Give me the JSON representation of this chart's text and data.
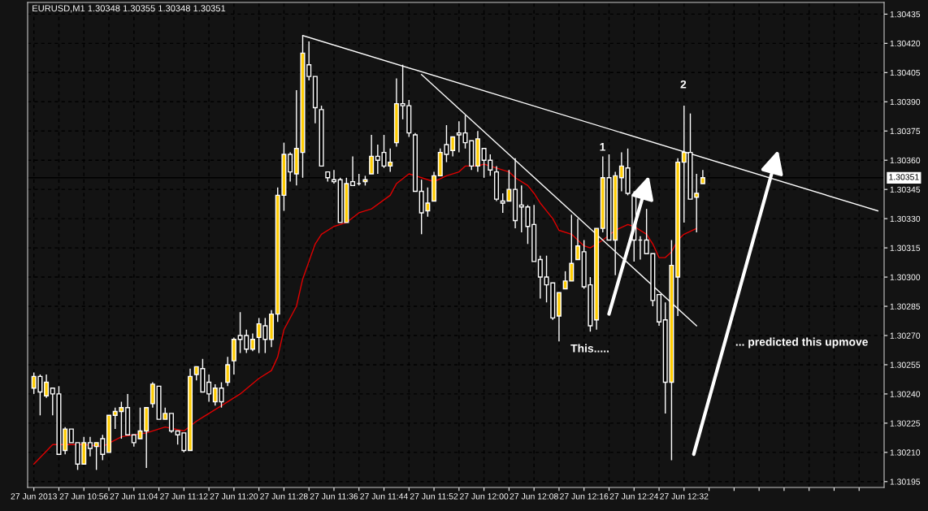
{
  "chart_data": {
    "type": "candlestick",
    "title": "EURUSD,M1 1.30348 1.30355 1.30348 1.30351",
    "x": [
      "2013-06-27T10:48",
      "2013-06-27T10:49",
      "2013-06-27T10:50",
      "2013-06-27T10:51",
      "2013-06-27T10:52",
      "2013-06-27T10:53",
      "2013-06-27T10:54",
      "2013-06-27T10:55",
      "2013-06-27T10:56",
      "2013-06-27T10:57",
      "2013-06-27T10:58",
      "2013-06-27T10:59",
      "2013-06-27T11:00",
      "2013-06-27T11:01",
      "2013-06-27T11:02",
      "2013-06-27T11:03",
      "2013-06-27T11:04",
      "2013-06-27T11:05",
      "2013-06-27T11:06",
      "2013-06-27T11:07",
      "2013-06-27T11:08",
      "2013-06-27T11:09",
      "2013-06-27T11:10",
      "2013-06-27T11:11",
      "2013-06-27T11:12",
      "2013-06-27T11:13",
      "2013-06-27T11:14",
      "2013-06-27T11:15",
      "2013-06-27T11:16",
      "2013-06-27T11:17",
      "2013-06-27T11:18",
      "2013-06-27T11:19",
      "2013-06-27T11:20",
      "2013-06-27T11:21",
      "2013-06-27T11:22",
      "2013-06-27T11:23",
      "2013-06-27T11:24",
      "2013-06-27T11:25",
      "2013-06-27T11:26",
      "2013-06-27T11:27",
      "2013-06-27T11:28",
      "2013-06-27T11:29",
      "2013-06-27T11:30",
      "2013-06-27T11:31",
      "2013-06-27T11:32",
      "2013-06-27T11:33",
      "2013-06-27T11:34",
      "2013-06-27T11:35",
      "2013-06-27T11:36",
      "2013-06-27T11:37",
      "2013-06-27T11:38",
      "2013-06-27T11:39",
      "2013-06-27T11:40",
      "2013-06-27T11:41",
      "2013-06-27T11:42",
      "2013-06-27T11:43",
      "2013-06-27T11:44",
      "2013-06-27T11:45",
      "2013-06-27T11:46",
      "2013-06-27T11:47",
      "2013-06-27T11:48",
      "2013-06-27T11:49",
      "2013-06-27T11:50",
      "2013-06-27T11:51",
      "2013-06-27T11:52",
      "2013-06-27T11:53",
      "2013-06-27T11:54",
      "2013-06-27T11:55",
      "2013-06-27T11:56",
      "2013-06-27T11:57",
      "2013-06-27T11:58",
      "2013-06-27T11:59",
      "2013-06-27T12:00",
      "2013-06-27T12:01",
      "2013-06-27T12:02",
      "2013-06-27T12:03",
      "2013-06-27T12:04",
      "2013-06-27T12:05",
      "2013-06-27T12:06",
      "2013-06-27T12:07",
      "2013-06-27T12:08",
      "2013-06-27T12:09",
      "2013-06-27T12:10",
      "2013-06-27T12:11",
      "2013-06-27T12:12",
      "2013-06-27T12:13",
      "2013-06-27T12:14",
      "2013-06-27T12:15",
      "2013-06-27T12:16",
      "2013-06-27T12:17",
      "2013-06-27T12:18",
      "2013-06-27T12:19",
      "2013-06-27T12:20",
      "2013-06-27T12:21",
      "2013-06-27T12:22",
      "2013-06-27T12:23",
      "2013-06-27T12:24",
      "2013-06-27T12:25",
      "2013-06-27T12:26",
      "2013-06-27T12:27",
      "2013-06-27T12:28",
      "2013-06-27T12:29",
      "2013-06-27T12:30",
      "2013-06-27T12:31",
      "2013-06-27T12:32",
      "2013-06-27T12:33",
      "2013-06-27T12:34",
      "2013-06-27T12:35"
    ],
    "ohlc": [
      [
        1.30243,
        1.30251,
        1.3024,
        1.30249
      ],
      [
        1.30249,
        1.3025,
        1.30229,
        1.30241
      ],
      [
        1.30239,
        1.3025,
        1.30238,
        1.30246
      ],
      [
        1.30243,
        1.30243,
        1.30229,
        1.3024
      ],
      [
        1.3024,
        1.30244,
        1.30209,
        1.30209
      ],
      [
        1.30211,
        1.30223,
        1.30209,
        1.30222
      ],
      [
        1.30222,
        1.30222,
        1.30215,
        1.30215
      ],
      [
        1.30215,
        1.30215,
        1.30201,
        1.30204
      ],
      [
        1.30204,
        1.30218,
        1.30204,
        1.30215
      ],
      [
        1.30215,
        1.30218,
        1.30208,
        1.30212
      ],
      [
        1.30213,
        1.30215,
        1.30201,
        1.30215
      ],
      [
        1.30217,
        1.30219,
        1.30206,
        1.30209
      ],
      [
        1.3021,
        1.30229,
        1.3021,
        1.30229
      ],
      [
        1.30229,
        1.30233,
        1.30222,
        1.30231
      ],
      [
        1.30231,
        1.30236,
        1.30217,
        1.30233
      ],
      [
        1.30233,
        1.3024,
        1.30219,
        1.30219
      ],
      [
        1.30219,
        1.30219,
        1.30213,
        1.30215
      ],
      [
        1.30217,
        1.30233,
        1.30217,
        1.30221
      ],
      [
        1.30221,
        1.30233,
        1.30202,
        1.30233
      ],
      [
        1.30235,
        1.30246,
        1.30233,
        1.30245
      ],
      [
        1.30244,
        1.30244,
        1.30227,
        1.30227
      ],
      [
        1.30227,
        1.30233,
        1.30227,
        1.3023
      ],
      [
        1.3023,
        1.3023,
        1.3022,
        1.30221
      ],
      [
        1.30221,
        1.30221,
        1.30214,
        1.30219
      ],
      [
        1.3022,
        1.3022,
        1.3021,
        1.30211
      ],
      [
        1.30211,
        1.30253,
        1.30211,
        1.30249
      ],
      [
        1.3025,
        1.30254,
        1.30247,
        1.30254
      ],
      [
        1.30253,
        1.30258,
        1.30241,
        1.30241
      ],
      [
        1.30246,
        1.3025,
        1.30236,
        1.3024
      ],
      [
        1.30236,
        1.30245,
        1.30234,
        1.30243
      ],
      [
        1.30243,
        1.30246,
        1.30233,
        1.30236
      ],
      [
        1.30246,
        1.30259,
        1.30244,
        1.30255
      ],
      [
        1.30257,
        1.30269,
        1.3025,
        1.30268
      ],
      [
        1.3027,
        1.30282,
        1.30261,
        1.30268
      ],
      [
        1.3027,
        1.30273,
        1.30261,
        1.30263
      ],
      [
        1.30263,
        1.30271,
        1.30262,
        1.30268
      ],
      [
        1.30269,
        1.30279,
        1.30261,
        1.30276
      ],
      [
        1.30275,
        1.30279,
        1.30261,
        1.30268
      ],
      [
        1.30268,
        1.30283,
        1.30264,
        1.30281
      ],
      [
        1.30281,
        1.30346,
        1.30277,
        1.30342
      ],
      [
        1.30342,
        1.30369,
        1.30334,
        1.30363
      ],
      [
        1.30363,
        1.30364,
        1.30349,
        1.30354
      ],
      [
        1.30353,
        1.30396,
        1.30347,
        1.30366
      ],
      [
        1.30364,
        1.30424,
        1.30351,
        1.30415
      ],
      [
        1.30409,
        1.30421,
        1.30401,
        1.30403
      ],
      [
        1.30403,
        1.30403,
        1.30379,
        1.30387
      ],
      [
        1.30386,
        1.30388,
        1.30357,
        1.30357
      ],
      [
        1.30354,
        1.30354,
        1.30349,
        1.30351
      ],
      [
        1.3035,
        1.30355,
        1.30348,
        1.30349
      ],
      [
        1.3035,
        1.30351,
        1.30328,
        1.30328
      ],
      [
        1.30328,
        1.30351,
        1.30328,
        1.30348
      ],
      [
        1.30349,
        1.30362,
        1.30347,
        1.30347
      ],
      [
        1.30348,
        1.30353,
        1.30347,
        1.30348
      ],
      [
        1.30349,
        1.30352,
        1.30347,
        1.3035
      ],
      [
        1.30353,
        1.30373,
        1.30353,
        1.30362
      ],
      [
        1.30362,
        1.30368,
        1.30353,
        1.3036
      ],
      [
        1.30364,
        1.30373,
        1.30356,
        1.30357
      ],
      [
        1.30357,
        1.30366,
        1.30354,
        1.30359
      ],
      [
        1.30369,
        1.30402,
        1.30367,
        1.30389
      ],
      [
        1.30389,
        1.30409,
        1.30381,
        1.30388
      ],
      [
        1.30388,
        1.30391,
        1.30372,
        1.30374
      ],
      [
        1.30373,
        1.30374,
        1.30344,
        1.30344
      ],
      [
        1.30344,
        1.3035,
        1.30322,
        1.30333
      ],
      [
        1.30334,
        1.30346,
        1.30331,
        1.30338
      ],
      [
        1.30339,
        1.30354,
        1.30339,
        1.30352
      ],
      [
        1.30352,
        1.30366,
        1.30352,
        1.30364
      ],
      [
        1.30368,
        1.30378,
        1.30359,
        1.30363
      ],
      [
        1.30365,
        1.30372,
        1.30362,
        1.30372
      ],
      [
        1.30374,
        1.3038,
        1.30364,
        1.30373
      ],
      [
        1.30374,
        1.30383,
        1.30366,
        1.30369
      ],
      [
        1.3037,
        1.3037,
        1.30355,
        1.30357
      ],
      [
        1.30357,
        1.30375,
        1.30354,
        1.30371
      ],
      [
        1.30366,
        1.30366,
        1.30351,
        1.3036
      ],
      [
        1.3036,
        1.30363,
        1.30352,
        1.30355
      ],
      [
        1.30354,
        1.30357,
        1.30339,
        1.3034
      ],
      [
        1.30339,
        1.30343,
        1.30333,
        1.30338
      ],
      [
        1.30339,
        1.30355,
        1.30339,
        1.30345
      ],
      [
        1.30345,
        1.30361,
        1.30325,
        1.30329
      ],
      [
        1.30337,
        1.30347,
        1.30323,
        1.30336
      ],
      [
        1.30336,
        1.30337,
        1.30317,
        1.30326
      ],
      [
        1.30327,
        1.30337,
        1.30308,
        1.30308
      ],
      [
        1.30309,
        1.30311,
        1.30289,
        1.303
      ],
      [
        1.303,
        1.30311,
        1.30287,
        1.30296
      ],
      [
        1.30297,
        1.30297,
        1.30278,
        1.30279
      ],
      [
        1.3028,
        1.30292,
        1.30267,
        1.30292
      ],
      [
        1.30294,
        1.30303,
        1.30294,
        1.30298
      ],
      [
        1.30298,
        1.30332,
        1.30298,
        1.30307
      ],
      [
        1.30309,
        1.3033,
        1.30309,
        1.30316
      ],
      [
        1.30313,
        1.30319,
        1.30294,
        1.30295
      ],
      [
        1.30296,
        1.303,
        1.30272,
        1.30275
      ],
      [
        1.30278,
        1.30325,
        1.30273,
        1.30325
      ],
      [
        1.30325,
        1.30362,
        1.30323,
        1.30351
      ],
      [
        1.30351,
        1.30363,
        1.30319,
        1.30319
      ],
      [
        1.30319,
        1.30354,
        1.30301,
        1.30352
      ],
      [
        1.30351,
        1.30364,
        1.30344,
        1.30357
      ],
      [
        1.30356,
        1.30366,
        1.30342,
        1.30343
      ],
      [
        1.30342,
        1.30344,
        1.30308,
        1.30319
      ],
      [
        1.30319,
        1.30321,
        1.30309,
        1.30319
      ],
      [
        1.30319,
        1.30335,
        1.30312,
        1.30312
      ],
      [
        1.30312,
        1.30312,
        1.30285,
        1.30288
      ],
      [
        1.30291,
        1.30291,
        1.30275,
        1.30277
      ],
      [
        1.30278,
        1.30287,
        1.3023,
        1.30246
      ],
      [
        1.30246,
        1.30319,
        1.30206,
        1.30306
      ],
      [
        1.303,
        1.30361,
        1.3028,
        1.30359
      ],
      [
        1.30359,
        1.30388,
        1.30328,
        1.30364
      ],
      [
        1.30364,
        1.30384,
        1.3034,
        1.3034
      ],
      [
        1.30341,
        1.30353,
        1.30323,
        1.30343
      ],
      [
        1.30348,
        1.30355,
        1.30348,
        1.30351
      ]
    ],
    "colors": [
      "#ffcc00",
      "#000000",
      "#ffcc00",
      "#000000",
      "#000000",
      "#ffcc00",
      "#000000",
      "#000000",
      "#ffcc00",
      "#000000",
      "#ffcc00",
      "#000000",
      "#ffcc00",
      "#ffcc00",
      "#ffcc00",
      "#000000",
      "#000000",
      "#ffcc00",
      "#ffcc00",
      "#ffcc00",
      "#000000",
      "#ffcc00",
      "#000000",
      "#000000",
      "#000000",
      "#ffcc00",
      "#ffcc00",
      "#000000",
      "#000000",
      "#ffcc00",
      "#000000",
      "#ffcc00",
      "#ffcc00",
      "#000000",
      "#000000",
      "#ffcc00",
      "#ffcc00",
      "#000000",
      "#ffcc00",
      "#ffcc00",
      "#ffcc00",
      "#000000",
      "#ffcc00",
      "#ffcc00",
      "#000000",
      "#000000",
      "#000000",
      "#000000",
      "#000000",
      "#000000",
      "#ffcc00",
      "#000000",
      "#ffffff",
      "#ffcc00",
      "#ffcc00",
      "#000000",
      "#000000",
      "#ffcc00",
      "#ffcc00",
      "#000000",
      "#000000",
      "#000000",
      "#000000",
      "#ffcc00",
      "#ffcc00",
      "#ffcc00",
      "#000000",
      "#ffcc00",
      "#000000",
      "#000000",
      "#000000",
      "#ffcc00",
      "#000000",
      "#000000",
      "#000000",
      "#000000",
      "#ffcc00",
      "#000000",
      "#000000",
      "#000000",
      "#000000",
      "#000000",
      "#000000",
      "#000000",
      "#ffcc00",
      "#ffcc00",
      "#ffcc00",
      "#ffcc00",
      "#000000",
      "#000000",
      "#ffcc00",
      "#ffcc00",
      "#000000",
      "#ffcc00",
      "#ffcc00",
      "#000000",
      "#000000",
      "#ffffff",
      "#000000",
      "#000000",
      "#000000",
      "#000000",
      "#ffcc00",
      "#ffcc00",
      "#ffcc00",
      "#000000",
      "#ffcc00",
      "#ffcc00"
    ],
    "series": [
      {
        "type": "line",
        "color": "#e00000",
        "x": [
          "2013-06-27T10:48",
          "2013-06-27T10:51",
          "2013-06-27T10:56",
          "2013-06-27T10:59",
          "2013-06-27T11:02",
          "2013-06-27T11:06",
          "2013-06-27T11:09",
          "2013-06-27T11:12",
          "2013-06-27T11:14",
          "2013-06-27T11:15",
          "2013-06-27T11:18",
          "2013-06-27T11:21",
          "2013-06-27T11:24",
          "2013-06-27T11:26",
          "2013-06-27T11:27",
          "2013-06-27T11:28",
          "2013-06-27T11:30",
          "2013-06-27T11:31",
          "2013-06-27T11:32",
          "2013-06-27T11:33",
          "2013-06-27T11:34",
          "2013-06-27T11:36",
          "2013-06-27T11:38",
          "2013-06-27T11:40",
          "2013-06-27T11:42",
          "2013-06-27T11:45",
          "2013-06-27T11:46",
          "2013-06-27T11:48",
          "2013-06-27T11:49",
          "2013-06-27T11:50",
          "2013-06-27T11:52",
          "2013-06-27T11:54",
          "2013-06-27T11:56",
          "2013-06-27T11:57",
          "2013-06-27T11:59",
          "2013-06-27T12:00",
          "2013-06-27T12:02",
          "2013-06-27T12:04",
          "2013-06-27T12:05",
          "2013-06-27T12:07",
          "2013-06-27T12:08",
          "2013-06-27T12:09",
          "2013-06-27T12:11",
          "2013-06-27T12:12",
          "2013-06-27T12:14",
          "2013-06-27T12:16",
          "2013-06-27T12:17",
          "2013-06-27T12:18",
          "2013-06-27T12:19",
          "2013-06-27T12:21",
          "2013-06-27T12:23",
          "2013-06-27T12:24",
          "2013-06-27T12:26",
          "2013-06-27T12:27",
          "2013-06-27T12:28",
          "2013-06-27T12:29",
          "2013-06-27T12:30",
          "2013-06-27T12:31",
          "2013-06-27T12:32",
          "2013-06-27T12:34"
        ],
        "values": [
          1.30204,
          1.30214,
          1.30214,
          1.30213,
          1.30218,
          1.3022,
          1.30223,
          1.30221,
          1.30226,
          1.30228,
          1.30234,
          1.3024,
          1.30248,
          1.30252,
          1.30259,
          1.30273,
          1.30285,
          1.30299,
          1.30308,
          1.30317,
          1.30322,
          1.30326,
          1.30328,
          1.30333,
          1.30335,
          1.30342,
          1.30348,
          1.30353,
          1.30352,
          1.30351,
          1.30349,
          1.30352,
          1.30354,
          1.30357,
          1.30357,
          1.30358,
          1.30356,
          1.30354,
          1.30351,
          1.30347,
          1.30343,
          1.30338,
          1.3033,
          1.30324,
          1.30322,
          1.30316,
          1.30315,
          1.30317,
          1.30319,
          1.30324,
          1.30327,
          1.30326,
          1.30322,
          1.30317,
          1.3031,
          1.3031,
          1.30313,
          1.30319,
          1.30322,
          1.30325
        ]
      },
      {
        "type": "line",
        "color": "#ffffff",
        "x": [
          "2013-06-27T11:31",
          "2013-06-27T13:03"
        ],
        "values": [
          1.30424,
          1.30334
        ]
      },
      {
        "type": "line",
        "color": "#ffffff",
        "x": [
          "2013-06-27T11:50",
          "2013-06-27T12:34"
        ],
        "values": [
          1.30404,
          1.30275
        ]
      }
    ],
    "xlim": [
      "2013-06-27T10:47",
      "2013-06-27T13:04"
    ],
    "ylim": [
      1.30192,
      1.30441
    ],
    "xticks": [
      {
        "value": "2013-06-27T10:48",
        "label": "27 Jun 2013"
      },
      {
        "value": "2013-06-27T10:52",
        "label": null
      },
      {
        "value": "2013-06-27T10:56",
        "label": "27 Jun 10:56"
      },
      {
        "value": "2013-06-27T11:00",
        "label": null
      },
      {
        "value": "2013-06-27T11:04",
        "label": "27 Jun 11:04"
      },
      {
        "value": "2013-06-27T11:08",
        "label": null
      },
      {
        "value": "2013-06-27T11:12",
        "label": "27 Jun 11:12"
      },
      {
        "value": "2013-06-27T11:16",
        "label": null
      },
      {
        "value": "2013-06-27T11:20",
        "label": "27 Jun 11:20"
      },
      {
        "value": "2013-06-27T11:24",
        "label": null
      },
      {
        "value": "2013-06-27T11:28",
        "label": "27 Jun 11:28"
      },
      {
        "value": "2013-06-27T11:32",
        "label": null
      },
      {
        "value": "2013-06-27T11:36",
        "label": "27 Jun 11:36"
      },
      {
        "value": "2013-06-27T11:40",
        "label": null
      },
      {
        "value": "2013-06-27T11:44",
        "label": "27 Jun 11:44"
      },
      {
        "value": "2013-06-27T11:48",
        "label": null
      },
      {
        "value": "2013-06-27T11:52",
        "label": "27 Jun 11:52"
      },
      {
        "value": "2013-06-27T11:56",
        "label": null
      },
      {
        "value": "2013-06-27T12:00",
        "label": "27 Jun 12:00"
      },
      {
        "value": "2013-06-27T12:04",
        "label": null
      },
      {
        "value": "2013-06-27T12:08",
        "label": "27 Jun 12:08"
      },
      {
        "value": "2013-06-27T12:12",
        "label": null
      },
      {
        "value": "2013-06-27T12:16",
        "label": "27 Jun 12:16"
      },
      {
        "value": "2013-06-27T12:20",
        "label": null
      },
      {
        "value": "2013-06-27T12:24",
        "label": "27 Jun 12:24"
      },
      {
        "value": "2013-06-27T12:28",
        "label": null
      },
      {
        "value": "2013-06-27T12:32",
        "label": "27 Jun 12:32"
      },
      {
        "value": "2013-06-27T12:36",
        "label": null
      },
      {
        "value": "2013-06-27T12:40",
        "label": null
      },
      {
        "value": "2013-06-27T12:44",
        "label": null
      },
      {
        "value": "2013-06-27T12:48",
        "label": null
      },
      {
        "value": "2013-06-27T12:52",
        "label": null
      },
      {
        "value": "2013-06-27T12:56",
        "label": null
      },
      {
        "value": "2013-06-27T13:00",
        "label": null
      }
    ],
    "yticks": [
      1.30435,
      {
        "value": 1.3042,
        "label": "1.30420"
      },
      1.30405,
      {
        "value": 1.3039,
        "label": "1.30390"
      },
      1.30375,
      {
        "value": 1.3036,
        "label": "1.30360"
      },
      1.30345,
      {
        "value": 1.3033,
        "label": "1.30330"
      },
      1.30315,
      {
        "value": 1.303,
        "label": "1.30300"
      },
      1.30285,
      {
        "value": 1.3027,
        "label": "1.30270"
      },
      1.30255,
      {
        "value": 1.3024,
        "label": "1.30240"
      },
      1.30225,
      {
        "value": 1.3021,
        "label": "1.30210"
      },
      1.30195
    ],
    "grid": true,
    "ref_lines": [
      {
        "axis": "y",
        "value": 1.30351,
        "label": "1.30351",
        "color": "#000000"
      }
    ],
    "annotations": [
      "1",
      "2",
      "This.....",
      "... predicted this upmove"
    ]
  }
}
